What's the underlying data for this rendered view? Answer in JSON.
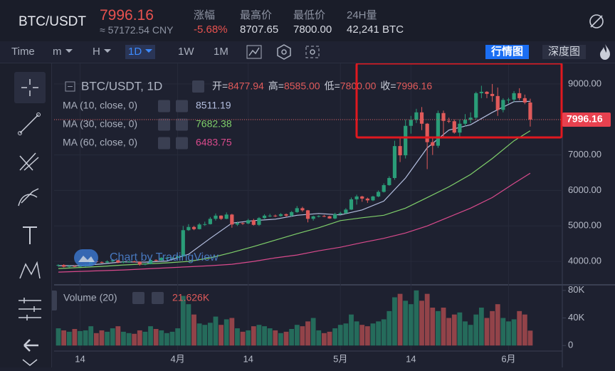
{
  "header": {
    "symbol": "BTC/USDT",
    "price": "7996.16",
    "cny": "≈ 57172.54 CNY",
    "stats": [
      {
        "label": "涨幅",
        "value": "-5.68%"
      },
      {
        "label": "最高价",
        "value": "8707.65"
      },
      {
        "label": "最低价",
        "value": "7800.00"
      },
      {
        "label": "24H量",
        "value": "42,241 BTC"
      }
    ]
  },
  "toolbar": {
    "items": [
      "Time",
      "m",
      "H",
      "1D",
      "1W",
      "1M"
    ],
    "views": [
      "行情图",
      "深度图"
    ]
  },
  "legend": {
    "symbol": "BTC/USDT, 1D",
    "ohlc": [
      {
        "label": "开=",
        "value": "8477.94"
      },
      {
        "label": "高=",
        "value": "8585.00"
      },
      {
        "label": "低=",
        "value": "7800.00"
      },
      {
        "label": "收=",
        "value": "7996.16"
      }
    ]
  },
  "watermark": "Chart by TradingView",
  "volume_legend": {
    "name": "Volume (20)",
    "value": "21.626K"
  },
  "chart_data": {
    "type": "candlestick",
    "up_color": "#2a9d78",
    "down_color": "#e05a5a",
    "grid": true,
    "categories": [
      null,
      null,
      null,
      null,
      "14",
      null,
      null,
      null,
      null,
      null,
      null,
      null,
      null,
      null,
      null,
      null,
      null,
      null,
      null,
      null,
      null,
      null,
      "4月",
      null,
      null,
      null,
      null,
      null,
      null,
      null,
      null,
      null,
      null,
      null,
      null,
      "14",
      null,
      null,
      null,
      null,
      null,
      null,
      null,
      null,
      null,
      null,
      null,
      null,
      null,
      null,
      null,
      null,
      "5月",
      null,
      null,
      null,
      null,
      null,
      null,
      null,
      null,
      null,
      null,
      null,
      null,
      "14",
      null,
      null,
      null,
      null,
      null,
      null,
      null,
      null,
      null,
      null,
      null,
      null,
      null,
      null,
      null,
      null,
      null,
      "6月",
      null,
      null,
      null,
      null
    ],
    "open": [
      3880,
      3900,
      3850,
      3870,
      3860,
      3870,
      3910,
      4000,
      3980,
      3970,
      4000,
      4030,
      3970,
      3990,
      4000,
      3990,
      3910,
      3930,
      4040,
      4030,
      4100,
      4100,
      4100,
      4140,
      4880,
      4970,
      4910,
      5040,
      5050,
      5200,
      5290,
      5200,
      5320,
      5040,
      5080,
      5070,
      5160,
      5030,
      5220,
      5290,
      5290,
      5280,
      5330,
      5290,
      5390,
      5500,
      5440,
      5200,
      5270,
      5280,
      5270,
      5210,
      5330,
      5360,
      5460,
      5750,
      5830,
      5770,
      5720,
      5830,
      5960,
      6150,
      6350,
      7250,
      6990,
      7820,
      7990,
      8200,
      7880,
      7360,
      7260,
      8180,
      7960,
      7950,
      7630,
      7880,
      7990,
      8050,
      8740,
      8780,
      8720,
      8660,
      8270,
      8550,
      8560,
      8740,
      8600,
      8477.94
    ],
    "high": [
      3920,
      3920,
      3900,
      3890,
      3900,
      3940,
      4020,
      4020,
      4000,
      4030,
      4060,
      4050,
      4010,
      4010,
      4020,
      4000,
      3950,
      4060,
      4060,
      4120,
      4130,
      4120,
      4170,
      5000,
      5050,
      5000,
      5080,
      5120,
      5250,
      5350,
      5300,
      5380,
      5340,
      5120,
      5100,
      5200,
      5200,
      5250,
      5330,
      5340,
      5320,
      5360,
      5350,
      5420,
      5560,
      5540,
      5450,
      5290,
      5300,
      5310,
      5290,
      5370,
      5400,
      5500,
      5800,
      5880,
      5850,
      5800,
      5850,
      6000,
      6200,
      6400,
      7400,
      7500,
      8000,
      8100,
      8300,
      8350,
      7900,
      7500,
      8250,
      8250,
      8050,
      8000,
      8000,
      8150,
      8200,
      8780,
      8950,
      8800,
      9000,
      8900,
      8600,
      8610,
      8800,
      8880,
      8700,
      8585
    ],
    "low": [
      3850,
      3830,
      3830,
      3840,
      3840,
      3850,
      3900,
      3960,
      3950,
      3950,
      3980,
      3950,
      3950,
      3960,
      3970,
      3880,
      3890,
      3920,
      4000,
      4020,
      4080,
      4090,
      4090,
      4130,
      4860,
      4880,
      4900,
      5000,
      5040,
      5150,
      5170,
      5190,
      4950,
      5000,
      5030,
      5050,
      5010,
      5000,
      5200,
      5250,
      5250,
      5260,
      5250,
      5260,
      5370,
      5400,
      5100,
      5150,
      5240,
      5250,
      5200,
      5190,
      5320,
      5340,
      5450,
      5600,
      5680,
      5650,
      5700,
      5810,
      5940,
      6130,
      6300,
      6800,
      6900,
      7600,
      7900,
      7700,
      6600,
      7000,
      7200,
      7500,
      7900,
      7600,
      7500,
      7800,
      7900,
      8000,
      8600,
      8600,
      8500,
      8100,
      8200,
      8450,
      8500,
      8540,
      8430,
      7800
    ],
    "close": [
      3900,
      3850,
      3870,
      3860,
      3870,
      3910,
      4000,
      3980,
      3970,
      4000,
      4030,
      3970,
      3990,
      4000,
      3990,
      3910,
      3930,
      4040,
      4030,
      4100,
      4100,
      4100,
      4140,
      4880,
      4970,
      4910,
      5040,
      5050,
      5200,
      5290,
      5200,
      5320,
      5040,
      5080,
      5070,
      5160,
      5030,
      5220,
      5290,
      5290,
      5280,
      5330,
      5290,
      5390,
      5500,
      5440,
      5200,
      5270,
      5280,
      5270,
      5210,
      5330,
      5360,
      5460,
      5750,
      5830,
      5770,
      5720,
      5830,
      5960,
      6150,
      6350,
      7250,
      6990,
      7820,
      7990,
      8200,
      7880,
      7360,
      7260,
      8180,
      7960,
      7950,
      7630,
      7880,
      7990,
      8050,
      8740,
      8780,
      8720,
      8660,
      8270,
      8550,
      8560,
      8740,
      8600,
      8477.94,
      7996.16
    ],
    "ylim": [
      3380,
      9460
    ],
    "yticks": [
      {
        "value": 4000,
        "label": "4000.00"
      },
      {
        "value": 5000,
        "label": "5000.00"
      },
      {
        "value": 6000,
        "label": "6000.00"
      },
      {
        "value": 7000,
        "label": "7000.00"
      },
      {
        "value": 8000,
        "label": "8000.00"
      },
      {
        "value": 9000,
        "label": "9000.00"
      }
    ],
    "series": [
      {
        "name": "MA (10, close, 0)",
        "last": "8511.19",
        "color": "#b4bfe0",
        "x": [
          0,
          4,
          8,
          12,
          16,
          20,
          24,
          28,
          32,
          36,
          40,
          44,
          48,
          52,
          56,
          60,
          64,
          68,
          72,
          76,
          80,
          84,
          87
        ],
        "values": [
          3880,
          3880,
          3930,
          3990,
          3980,
          4010,
          4200,
          4650,
          5080,
          5150,
          5190,
          5300,
          5350,
          5310,
          5450,
          5700,
          6350,
          7200,
          7700,
          7850,
          8200,
          8500,
          8511.19
        ]
      },
      {
        "name": "MA (30, close, 0)",
        "last": "7682.38",
        "color": "#7fcf6a",
        "x": [
          0,
          4,
          8,
          12,
          16,
          20,
          24,
          28,
          32,
          36,
          40,
          44,
          48,
          52,
          56,
          60,
          64,
          68,
          72,
          76,
          80,
          84,
          87
        ],
        "values": [
          3800,
          3830,
          3860,
          3900,
          3930,
          3960,
          4000,
          4100,
          4250,
          4420,
          4600,
          4780,
          4950,
          5150,
          5230,
          5300,
          5500,
          5800,
          6100,
          6450,
          6900,
          7400,
          7682.38
        ]
      },
      {
        "name": "MA (60, close, 0)",
        "last": "6483.75",
        "color": "#d94a8c",
        "x": [
          0,
          4,
          8,
          12,
          16,
          20,
          24,
          28,
          32,
          36,
          40,
          44,
          48,
          52,
          56,
          60,
          64,
          68,
          72,
          76,
          80,
          84,
          87
        ],
        "values": [
          3700,
          3720,
          3740,
          3760,
          3790,
          3820,
          3850,
          3880,
          3920,
          4000,
          4100,
          4180,
          4300,
          4400,
          4530,
          4650,
          4800,
          5000,
          5250,
          5500,
          5800,
          6200,
          6483.75
        ]
      }
    ],
    "volume": {
      "values": [
        25,
        22,
        20,
        24,
        21,
        22,
        28,
        18,
        22,
        20,
        25,
        28,
        20,
        18,
        17,
        22,
        20,
        28,
        24,
        22,
        18,
        20,
        25,
        72,
        60,
        45,
        32,
        30,
        33,
        42,
        30,
        38,
        40,
        25,
        20,
        22,
        28,
        30,
        28,
        25,
        22,
        18,
        20,
        24,
        30,
        28,
        35,
        40,
        22,
        18,
        20,
        25,
        30,
        32,
        45,
        35,
        30,
        28,
        32,
        35,
        38,
        50,
        70,
        75,
        65,
        60,
        80,
        65,
        75,
        55,
        50,
        55,
        40,
        45,
        48,
        35,
        30,
        45,
        55,
        40,
        50,
        60,
        40,
        35,
        38,
        50,
        45,
        21.626
      ],
      "ylim": [
        -7,
        86
      ],
      "yticks": [
        0,
        {
          "value": 40,
          "label": "40K"
        },
        {
          "value": 80,
          "label": "80K"
        }
      ]
    }
  }
}
